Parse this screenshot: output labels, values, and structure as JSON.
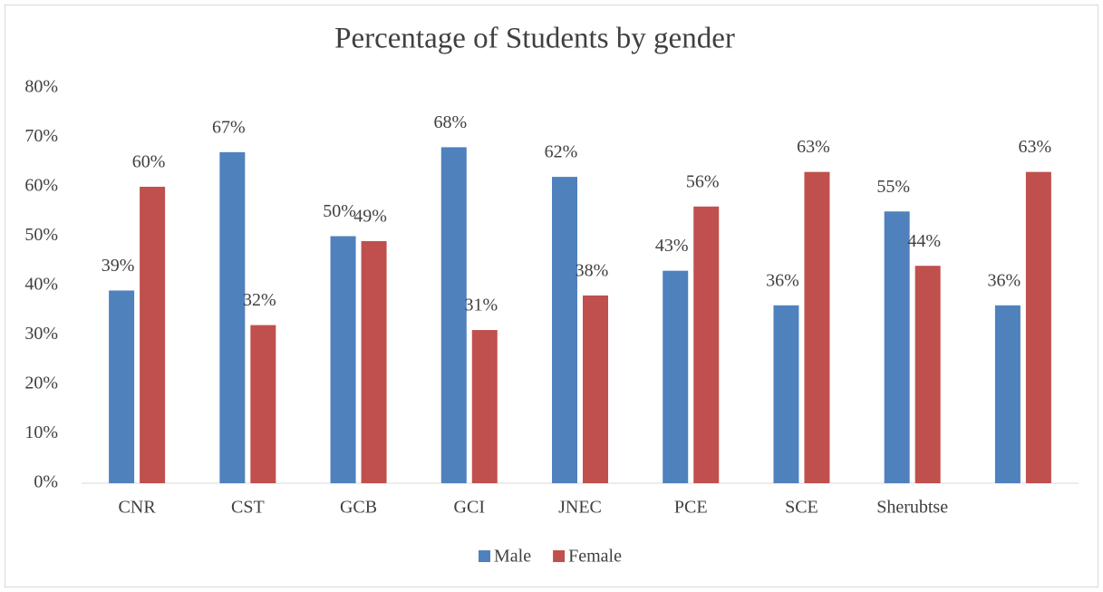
{
  "chart_data": {
    "type": "bar",
    "title": "Percentage of Students by gender",
    "categories": [
      "CNR",
      "CST",
      "GCB",
      "GCI",
      "JNEC",
      "PCE",
      "SCE",
      "Sherubtse",
      null
    ],
    "series": [
      {
        "name": "Male",
        "color": "#4f81bd",
        "values": [
          39,
          67,
          50,
          68,
          62,
          43,
          36,
          55,
          36
        ],
        "value_labels": [
          "39%",
          "67%",
          "50%",
          "68%",
          "62%",
          "43%",
          "36%",
          "55%",
          "36%"
        ]
      },
      {
        "name": "Female",
        "color": "#c0504d",
        "values": [
          60,
          32,
          49,
          31,
          38,
          56,
          63,
          44,
          63
        ],
        "value_labels": [
          "60%",
          "32%",
          "49%",
          "31%",
          "38%",
          "56%",
          "63%",
          "44%",
          "63%"
        ]
      }
    ],
    "ylim": [
      0,
      80
    ],
    "yticks": [
      {
        "value": 0,
        "label": "0%"
      },
      {
        "value": 10,
        "label": "10%"
      },
      {
        "value": 20,
        "label": "20%"
      },
      {
        "value": 30,
        "label": "30%"
      },
      {
        "value": 40,
        "label": "40%"
      },
      {
        "value": 50,
        "label": "50%"
      },
      {
        "value": 60,
        "label": "60%"
      },
      {
        "value": 70,
        "label": "70%"
      },
      {
        "value": 80,
        "label": "80%"
      }
    ],
    "grid": false,
    "legend": "bottom"
  }
}
